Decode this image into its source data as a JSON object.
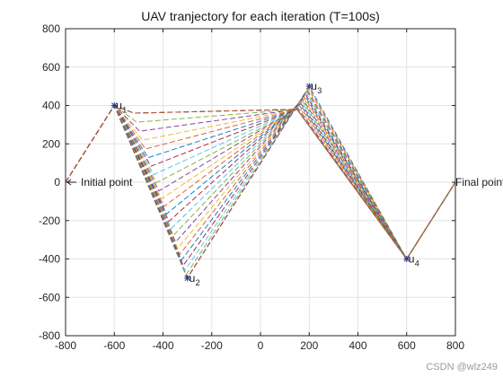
{
  "chart_data": {
    "type": "line",
    "title": "UAV tranjectory for each iteration (T=100s)",
    "xlabel": "",
    "ylabel": "",
    "xlim": [
      -800,
      800
    ],
    "ylim": [
      -800,
      800
    ],
    "xticks": [
      -800,
      -600,
      -400,
      -200,
      0,
      200,
      400,
      600,
      800
    ],
    "yticks": [
      -800,
      -600,
      -400,
      -200,
      0,
      200,
      400,
      600,
      800
    ],
    "grid": true,
    "iterations": 30,
    "line_style": "dashed",
    "waypoints": {
      "initial": [
        -800,
        0
      ],
      "u1": [
        -600,
        400
      ],
      "u2": [
        -300,
        -500
      ],
      "u3": [
        200,
        500
      ],
      "u4": [
        600,
        -400
      ],
      "final": [
        800,
        0
      ]
    },
    "first_iteration_path": [
      [
        -800,
        0
      ],
      [
        -600,
        400
      ],
      [
        -300,
        -500
      ],
      [
        200,
        500
      ],
      [
        600,
        -400
      ],
      [
        800,
        0
      ]
    ],
    "last_iteration_path": [
      [
        -800,
        0
      ],
      [
        -600,
        400
      ],
      [
        -520,
        360
      ],
      [
        150,
        380
      ],
      [
        600,
        -400
      ],
      [
        800,
        0
      ]
    ],
    "annotations": [
      {
        "text": "Initial point",
        "x": -800,
        "y": 0
      },
      {
        "text": "Final point",
        "x": 800,
        "y": 0
      }
    ],
    "markers": [
      {
        "name": "u",
        "sub": "1",
        "x": -600,
        "y": 400
      },
      {
        "name": "u",
        "sub": "2",
        "x": -300,
        "y": -500
      },
      {
        "name": "u",
        "sub": "3",
        "x": 200,
        "y": 500
      },
      {
        "name": "u",
        "sub": "4",
        "x": 600,
        "y": -400
      }
    ],
    "marker_color": "#1f3a8a"
  },
  "watermark": "CSDN @wlz249"
}
